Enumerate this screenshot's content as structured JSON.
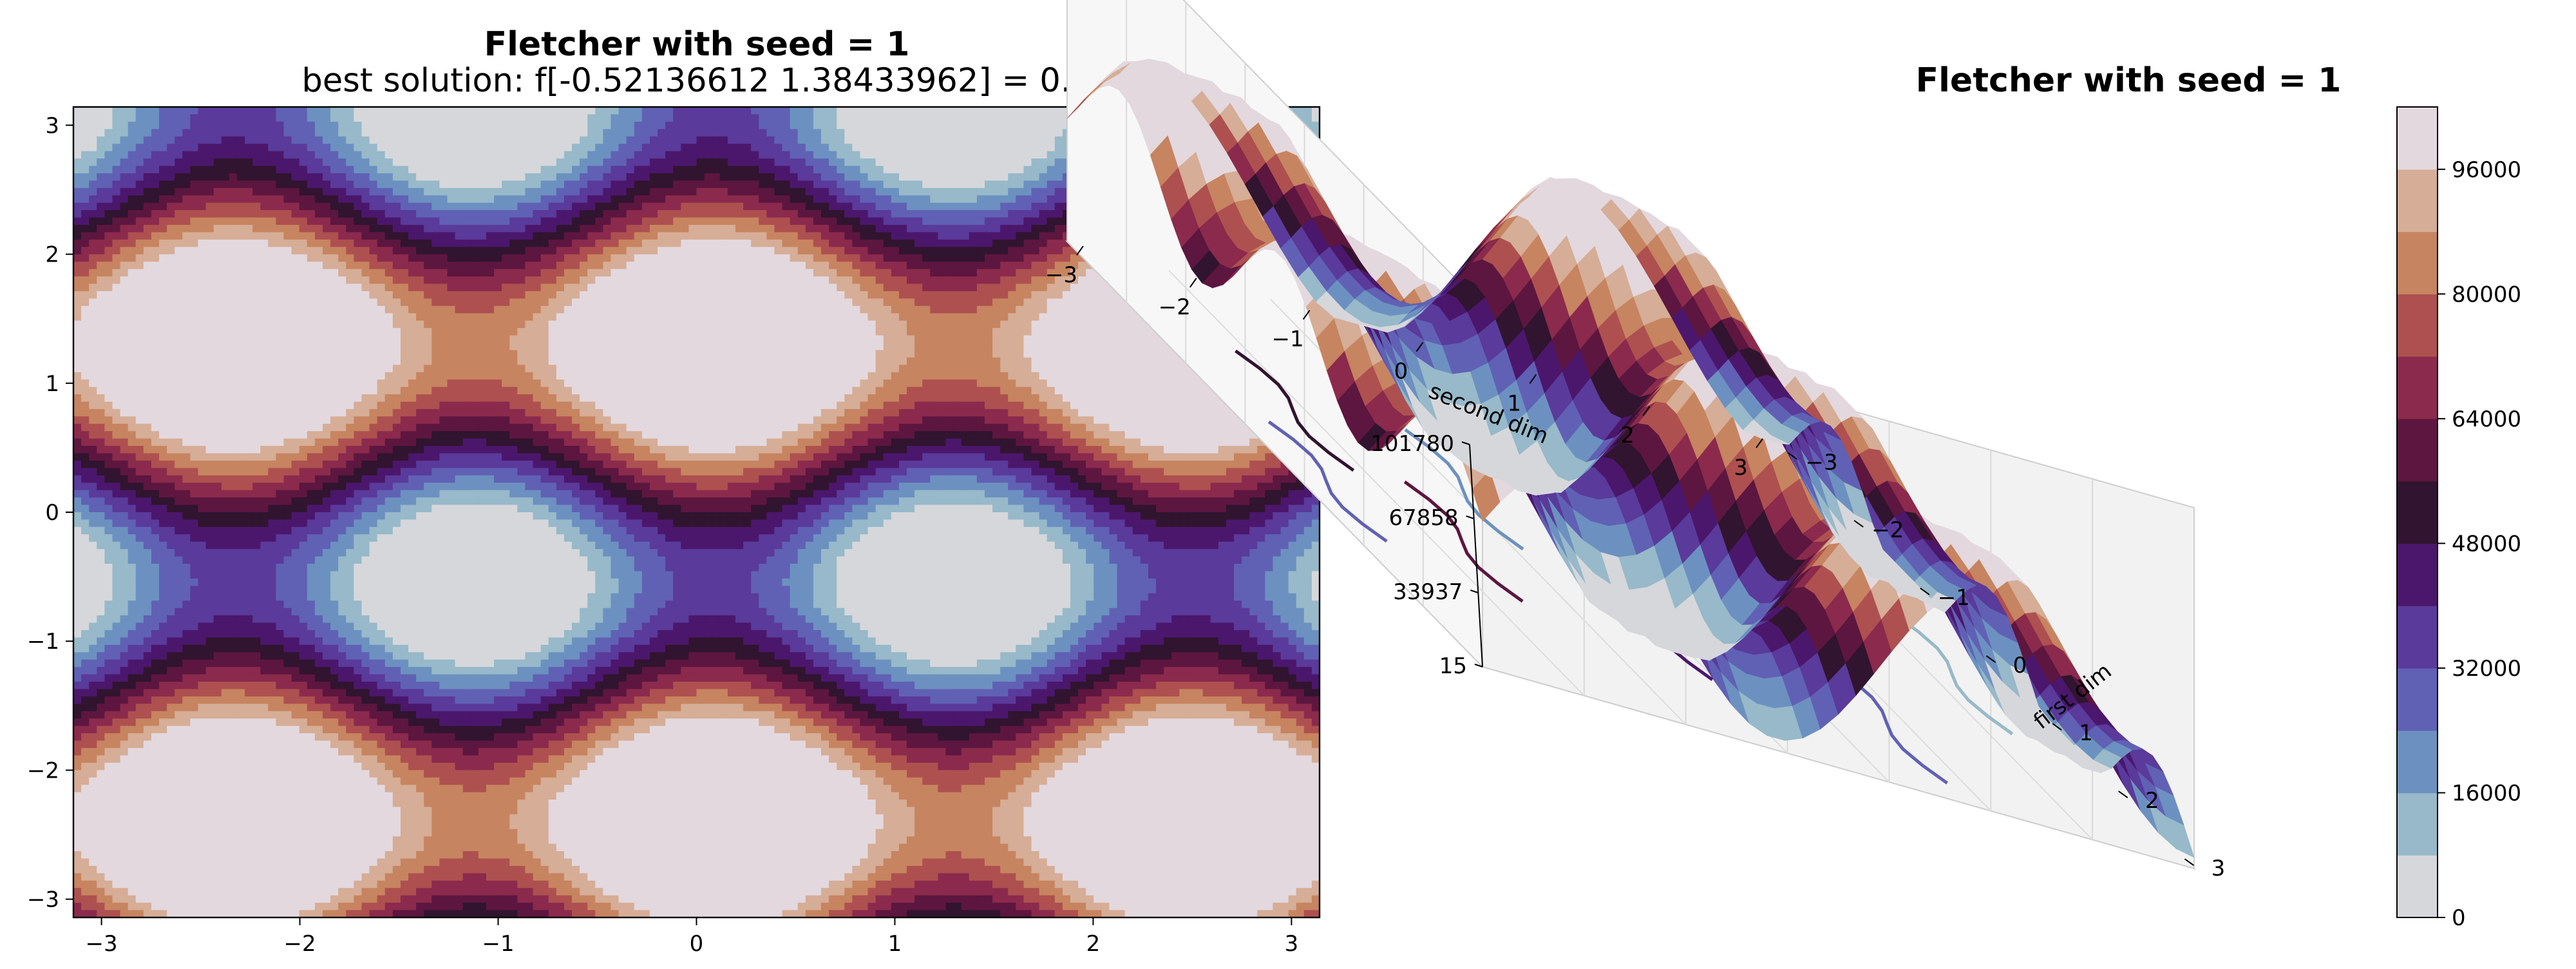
{
  "figure": {
    "left_title": "Fletcher with seed = 1",
    "left_subtitle": "best solution: f[-0.52136612  1.38433962] = 0.0",
    "right_title": "Fletcher with seed = 1"
  },
  "chart_data": [
    {
      "type": "heatmap",
      "title": "Fletcher with seed = 1",
      "subtitle": "best solution: f[-0.52136612  1.38433962] = 0.0",
      "xlim": [
        -3.14159,
        3.14159
      ],
      "ylim": [
        -3.14159,
        3.14159
      ],
      "x_ticks": [
        -3,
        -2,
        -1,
        0,
        1,
        2,
        3
      ],
      "y_ticks": [
        -3,
        -2,
        -1,
        0,
        1,
        2,
        3
      ],
      "levels": [
        0,
        8000,
        16000,
        24000,
        32000,
        40000,
        48000,
        56000,
        64000,
        72000,
        80000,
        88000,
        96000,
        104000
      ],
      "colormap": "twilight",
      "contour_filled": true
    },
    {
      "type": "surface3d",
      "title": "Fletcher with seed = 1",
      "xlabel": "first dim",
      "ylabel": "second dim",
      "x_ticks": [
        -3,
        -2,
        -1,
        0,
        1,
        2,
        3
      ],
      "y_ticks": [
        -3,
        -2,
        -1,
        0,
        1,
        2,
        3
      ],
      "z_ticks": [
        "15",
        "33937",
        "67858",
        "101780"
      ],
      "zlim": [
        15,
        101780
      ],
      "colormap": "twilight",
      "floor_contours": true
    },
    {
      "type": "colorbar",
      "ticks": [
        "0",
        "16000",
        "32000",
        "48000",
        "64000",
        "80000",
        "96000"
      ],
      "range": [
        0,
        104000
      ],
      "colors": [
        "#d6d7db",
        "#97b9c9",
        "#6c91c0",
        "#6061b4",
        "#5a3a9a",
        "#4b176c",
        "#31142f",
        "#5d163f",
        "#8b2a4c",
        "#ae5050",
        "#c78460",
        "#d6ad96",
        "#e3d8de"
      ]
    }
  ]
}
